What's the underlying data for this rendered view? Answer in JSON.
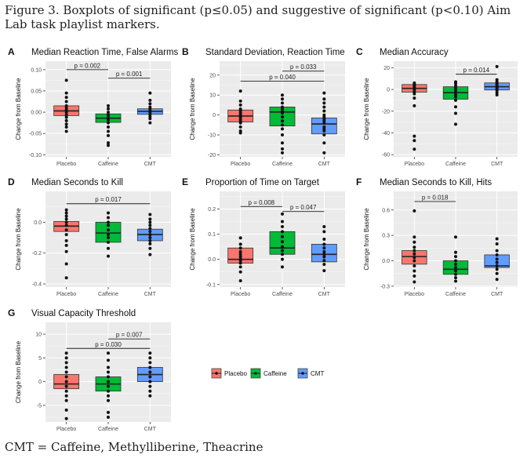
{
  "figure": {
    "caption": "Figure 3. Boxplots of significant (p≤0.05) and suggestive of significant (p<0.10) Aim Lab task playlist markers.",
    "footnote": "CMT = Caffeine, Methylliberine, Theacrine"
  },
  "colors": {
    "Placebo": "#F8766D",
    "Caffeine": "#00BA38",
    "CMT": "#619CFF"
  },
  "legend": {
    "placement": "bottom-right",
    "items": [
      "Placebo",
      "Caffeine",
      "CMT"
    ]
  },
  "chart_data": [
    {
      "type": "boxplot",
      "panel": "A",
      "title": "Median Reaction Time, False Alarms",
      "ylabel": "Change from Baseline",
      "categories": [
        "Placebo",
        "Caffeine",
        "CMT"
      ],
      "ylim": [
        -0.105,
        0.12
      ],
      "yticks": [
        -0.1,
        -0.05,
        0.0,
        0.05,
        0.1
      ],
      "yticklabels": [
        "-0.10",
        "-0.05",
        "0.00",
        "0.05",
        "0.10"
      ],
      "boxes": [
        {
          "q1": -0.008,
          "median": 0.003,
          "q3": 0.015
        },
        {
          "q1": -0.024,
          "median": -0.014,
          "q3": -0.004
        },
        {
          "q1": -0.005,
          "median": 0.002,
          "q3": 0.008
        }
      ],
      "points": [
        [
          -0.045,
          -0.035,
          -0.028,
          -0.02,
          -0.012,
          -0.006,
          0.0,
          0.005,
          0.01,
          0.015,
          0.025,
          0.035,
          0.045,
          0.075
        ],
        [
          -0.078,
          -0.072,
          -0.055,
          -0.045,
          -0.035,
          -0.025,
          -0.018,
          -0.012,
          -0.006,
          0.0,
          0.008,
          0.015
        ],
        [
          -0.025,
          -0.015,
          -0.01,
          -0.005,
          0.0,
          0.004,
          0.008,
          0.012,
          0.02,
          0.028,
          0.045
        ]
      ],
      "annotations": [
        {
          "from": 0,
          "to": 1,
          "y": 0.1,
          "label": "p = 0.002"
        },
        {
          "from": 1,
          "to": 2,
          "y": 0.08,
          "label": "p = 0.001"
        }
      ]
    },
    {
      "type": "boxplot",
      "panel": "B",
      "title": "Standard Deviation, Reaction Time",
      "ylabel": "Change from Baseline",
      "categories": [
        "Placebo",
        "Caffeine",
        "CMT"
      ],
      "ylim": [
        -21,
        27
      ],
      "yticks": [
        -20,
        -10,
        0,
        10,
        20
      ],
      "yticklabels": [
        "-20",
        "-10",
        "0",
        "10",
        "20"
      ],
      "boxes": [
        {
          "q1": -3.5,
          "median": -0.5,
          "q3": 2.5
        },
        {
          "q1": -5.5,
          "median": 1.5,
          "q3": 4.0
        },
        {
          "q1": -9.5,
          "median": -4.5,
          "q3": -1.5
        }
      ],
      "points": [
        [
          -9,
          -8,
          -6,
          -4,
          -3,
          -2,
          -1,
          0,
          1,
          2,
          3,
          5,
          7,
          12
        ],
        [
          -19,
          -17,
          -14,
          -10,
          -7,
          -5,
          -3,
          -1,
          1,
          2,
          3,
          4,
          6,
          8,
          10
        ],
        [
          -19,
          -14,
          -10,
          -8,
          -7,
          -6,
          -4,
          -3,
          -2,
          -1,
          0,
          2,
          4,
          6,
          8,
          11
        ]
      ],
      "annotations": [
        {
          "from": 1,
          "to": 2,
          "y": 22,
          "label": "p = 0.033"
        },
        {
          "from": 0,
          "to": 2,
          "y": 17,
          "label": "p = 0.040"
        }
      ]
    },
    {
      "type": "boxplot",
      "panel": "C",
      "title": "Median Accuracy",
      "ylabel": "Change from Baseline",
      "categories": [
        "Placebo",
        "Caffeine",
        "CMT"
      ],
      "ylim": [
        -62,
        26
      ],
      "yticks": [
        -60,
        -40,
        -20,
        0,
        20
      ],
      "yticklabels": [
        "-60",
        "-40",
        "-20",
        "0",
        "20"
      ],
      "boxes": [
        {
          "q1": -2.5,
          "median": 1.0,
          "q3": 4.5
        },
        {
          "q1": -9.0,
          "median": -3.0,
          "q3": 2.5
        },
        {
          "q1": -0.5,
          "median": 2.5,
          "q3": 6.0
        }
      ],
      "points": [
        [
          -55,
          -47,
          -43,
          -15,
          -8,
          -4,
          -2,
          0,
          1,
          2,
          3,
          4,
          5,
          6
        ],
        [
          -32,
          -22,
          -16,
          -10,
          -7,
          -5,
          -3,
          -1,
          0,
          2,
          4,
          6,
          7
        ],
        [
          -5,
          -3,
          -1,
          0,
          1,
          2,
          3,
          4,
          5,
          6,
          7,
          9,
          21
        ]
      ],
      "annotations": [
        {
          "from": 1,
          "to": 2,
          "y": 14,
          "label": "p = 0.014"
        }
      ]
    },
    {
      "type": "boxplot",
      "panel": "D",
      "title": "Median Seconds to Kill",
      "ylabel": "Change from Baseline",
      "categories": [
        "Placebo",
        "Caffeine",
        "CMT"
      ],
      "ylim": [
        -0.42,
        0.2
      ],
      "yticks": [
        -0.4,
        -0.2,
        0.0
      ],
      "yticklabels": [
        "-0.4",
        "-0.2",
        "0.0"
      ],
      "boxes": [
        {
          "q1": -0.06,
          "median": -0.025,
          "q3": 0.005
        },
        {
          "q1": -0.13,
          "median": -0.07,
          "q3": 0.0
        },
        {
          "q1": -0.12,
          "median": -0.08,
          "q3": -0.045
        }
      ],
      "points": [
        [
          -0.36,
          -0.27,
          -0.19,
          -0.15,
          -0.12,
          -0.08,
          -0.05,
          -0.02,
          0.0,
          0.02,
          0.04,
          0.06,
          0.08
        ],
        [
          -0.22,
          -0.17,
          -0.13,
          -0.1,
          -0.08,
          -0.05,
          -0.02,
          0.0,
          0.03,
          0.06
        ],
        [
          -0.21,
          -0.17,
          -0.14,
          -0.12,
          -0.1,
          -0.08,
          -0.06,
          -0.04,
          -0.02,
          0.0,
          0.02,
          0.05
        ]
      ],
      "annotations": [
        {
          "from": 0,
          "to": 2,
          "y": 0.12,
          "label": "p = 0.017"
        }
      ]
    },
    {
      "type": "boxplot",
      "panel": "E",
      "title": "Proportion of Time on Target",
      "ylabel": "Change from Baseline",
      "categories": [
        "Placebo",
        "Caffeine",
        "CMT"
      ],
      "ylim": [
        -0.11,
        0.27
      ],
      "yticks": [
        -0.1,
        0.0,
        0.1,
        0.2
      ],
      "yticklabels": [
        "-0.1",
        "0.0",
        "0.1",
        "0.2"
      ],
      "boxes": [
        {
          "q1": -0.015,
          "median": 0.0,
          "q3": 0.045
        },
        {
          "q1": 0.02,
          "median": 0.045,
          "q3": 0.11
        },
        {
          "q1": -0.01,
          "median": 0.02,
          "q3": 0.06
        }
      ],
      "points": [
        [
          -0.085,
          -0.05,
          -0.03,
          -0.015,
          -0.005,
          0.0,
          0.01,
          0.02,
          0.03,
          0.045,
          0.06,
          0.085
        ],
        [
          -0.03,
          0.0,
          0.02,
          0.035,
          0.05,
          0.07,
          0.09,
          0.11,
          0.13,
          0.15,
          0.18
        ],
        [
          -0.045,
          -0.02,
          -0.005,
          0.01,
          0.02,
          0.03,
          0.045,
          0.06,
          0.08,
          0.11,
          0.13
        ]
      ],
      "annotations": [
        {
          "from": 0,
          "to": 1,
          "y": 0.21,
          "label": "p = 0.008"
        },
        {
          "from": 1,
          "to": 2,
          "y": 0.19,
          "label": "p = 0.047"
        }
      ]
    },
    {
      "type": "boxplot",
      "panel": "F",
      "title": "Median Seconds to Kill, Hits",
      "ylabel": "Change from Baseline",
      "categories": [
        "Placebo",
        "Caffeine",
        "CMT"
      ],
      "ylim": [
        -0.31,
        0.82
      ],
      "yticks": [
        -0.3,
        0.0,
        0.3,
        0.6
      ],
      "yticklabels": [
        "-0.3",
        "0.0",
        "0.3",
        "0.6"
      ],
      "boxes": [
        {
          "q1": -0.04,
          "median": 0.05,
          "q3": 0.12
        },
        {
          "q1": -0.16,
          "median": -0.1,
          "q3": 0.0
        },
        {
          "q1": -0.08,
          "median": -0.06,
          "q3": 0.07
        }
      ],
      "points": [
        [
          -0.25,
          -0.18,
          -0.12,
          -0.06,
          0.0,
          0.04,
          0.08,
          0.12,
          0.16,
          0.22,
          0.28,
          0.59
        ],
        [
          -0.24,
          -0.2,
          -0.16,
          -0.12,
          -0.08,
          -0.04,
          0.0,
          0.05,
          0.1,
          0.28
        ],
        [
          -0.22,
          -0.15,
          -0.1,
          -0.06,
          -0.02,
          0.02,
          0.07,
          0.12,
          0.2,
          0.26
        ]
      ],
      "annotations": [
        {
          "from": 0,
          "to": 1,
          "y": 0.7,
          "label": "p = 0.018"
        }
      ]
    },
    {
      "type": "boxplot",
      "panel": "G",
      "title": "Visual Capacity Threshold",
      "ylabel": "Change from Baseline",
      "categories": [
        "Placebo",
        "Caffeine",
        "CMT"
      ],
      "ylim": [
        -8.5,
        12.5
      ],
      "yticks": [
        -5,
        0,
        5,
        10
      ],
      "yticklabels": [
        "-5",
        "0",
        "5",
        "10"
      ],
      "boxes": [
        {
          "q1": -1.5,
          "median": -0.5,
          "q3": 1.5
        },
        {
          "q1": -2.0,
          "median": -0.5,
          "q3": 1.0
        },
        {
          "q1": 0.0,
          "median": 1.5,
          "q3": 3.0
        }
      ],
      "points": [
        [
          -7.8,
          -6,
          -4,
          -3,
          -2,
          -1,
          0,
          1,
          2,
          3,
          4,
          5,
          6
        ],
        [
          -7.5,
          -6.5,
          -4,
          -3,
          -2,
          -1,
          0,
          1,
          2,
          3,
          4.5,
          6
        ],
        [
          -3,
          -2,
          -1,
          0,
          1,
          2,
          3,
          4,
          5,
          6
        ]
      ],
      "annotations": [
        {
          "from": 1,
          "to": 2,
          "y": 9,
          "label": "p = 0.007"
        },
        {
          "from": 0,
          "to": 2,
          "y": 7,
          "label": "p = 0.030"
        }
      ]
    }
  ]
}
